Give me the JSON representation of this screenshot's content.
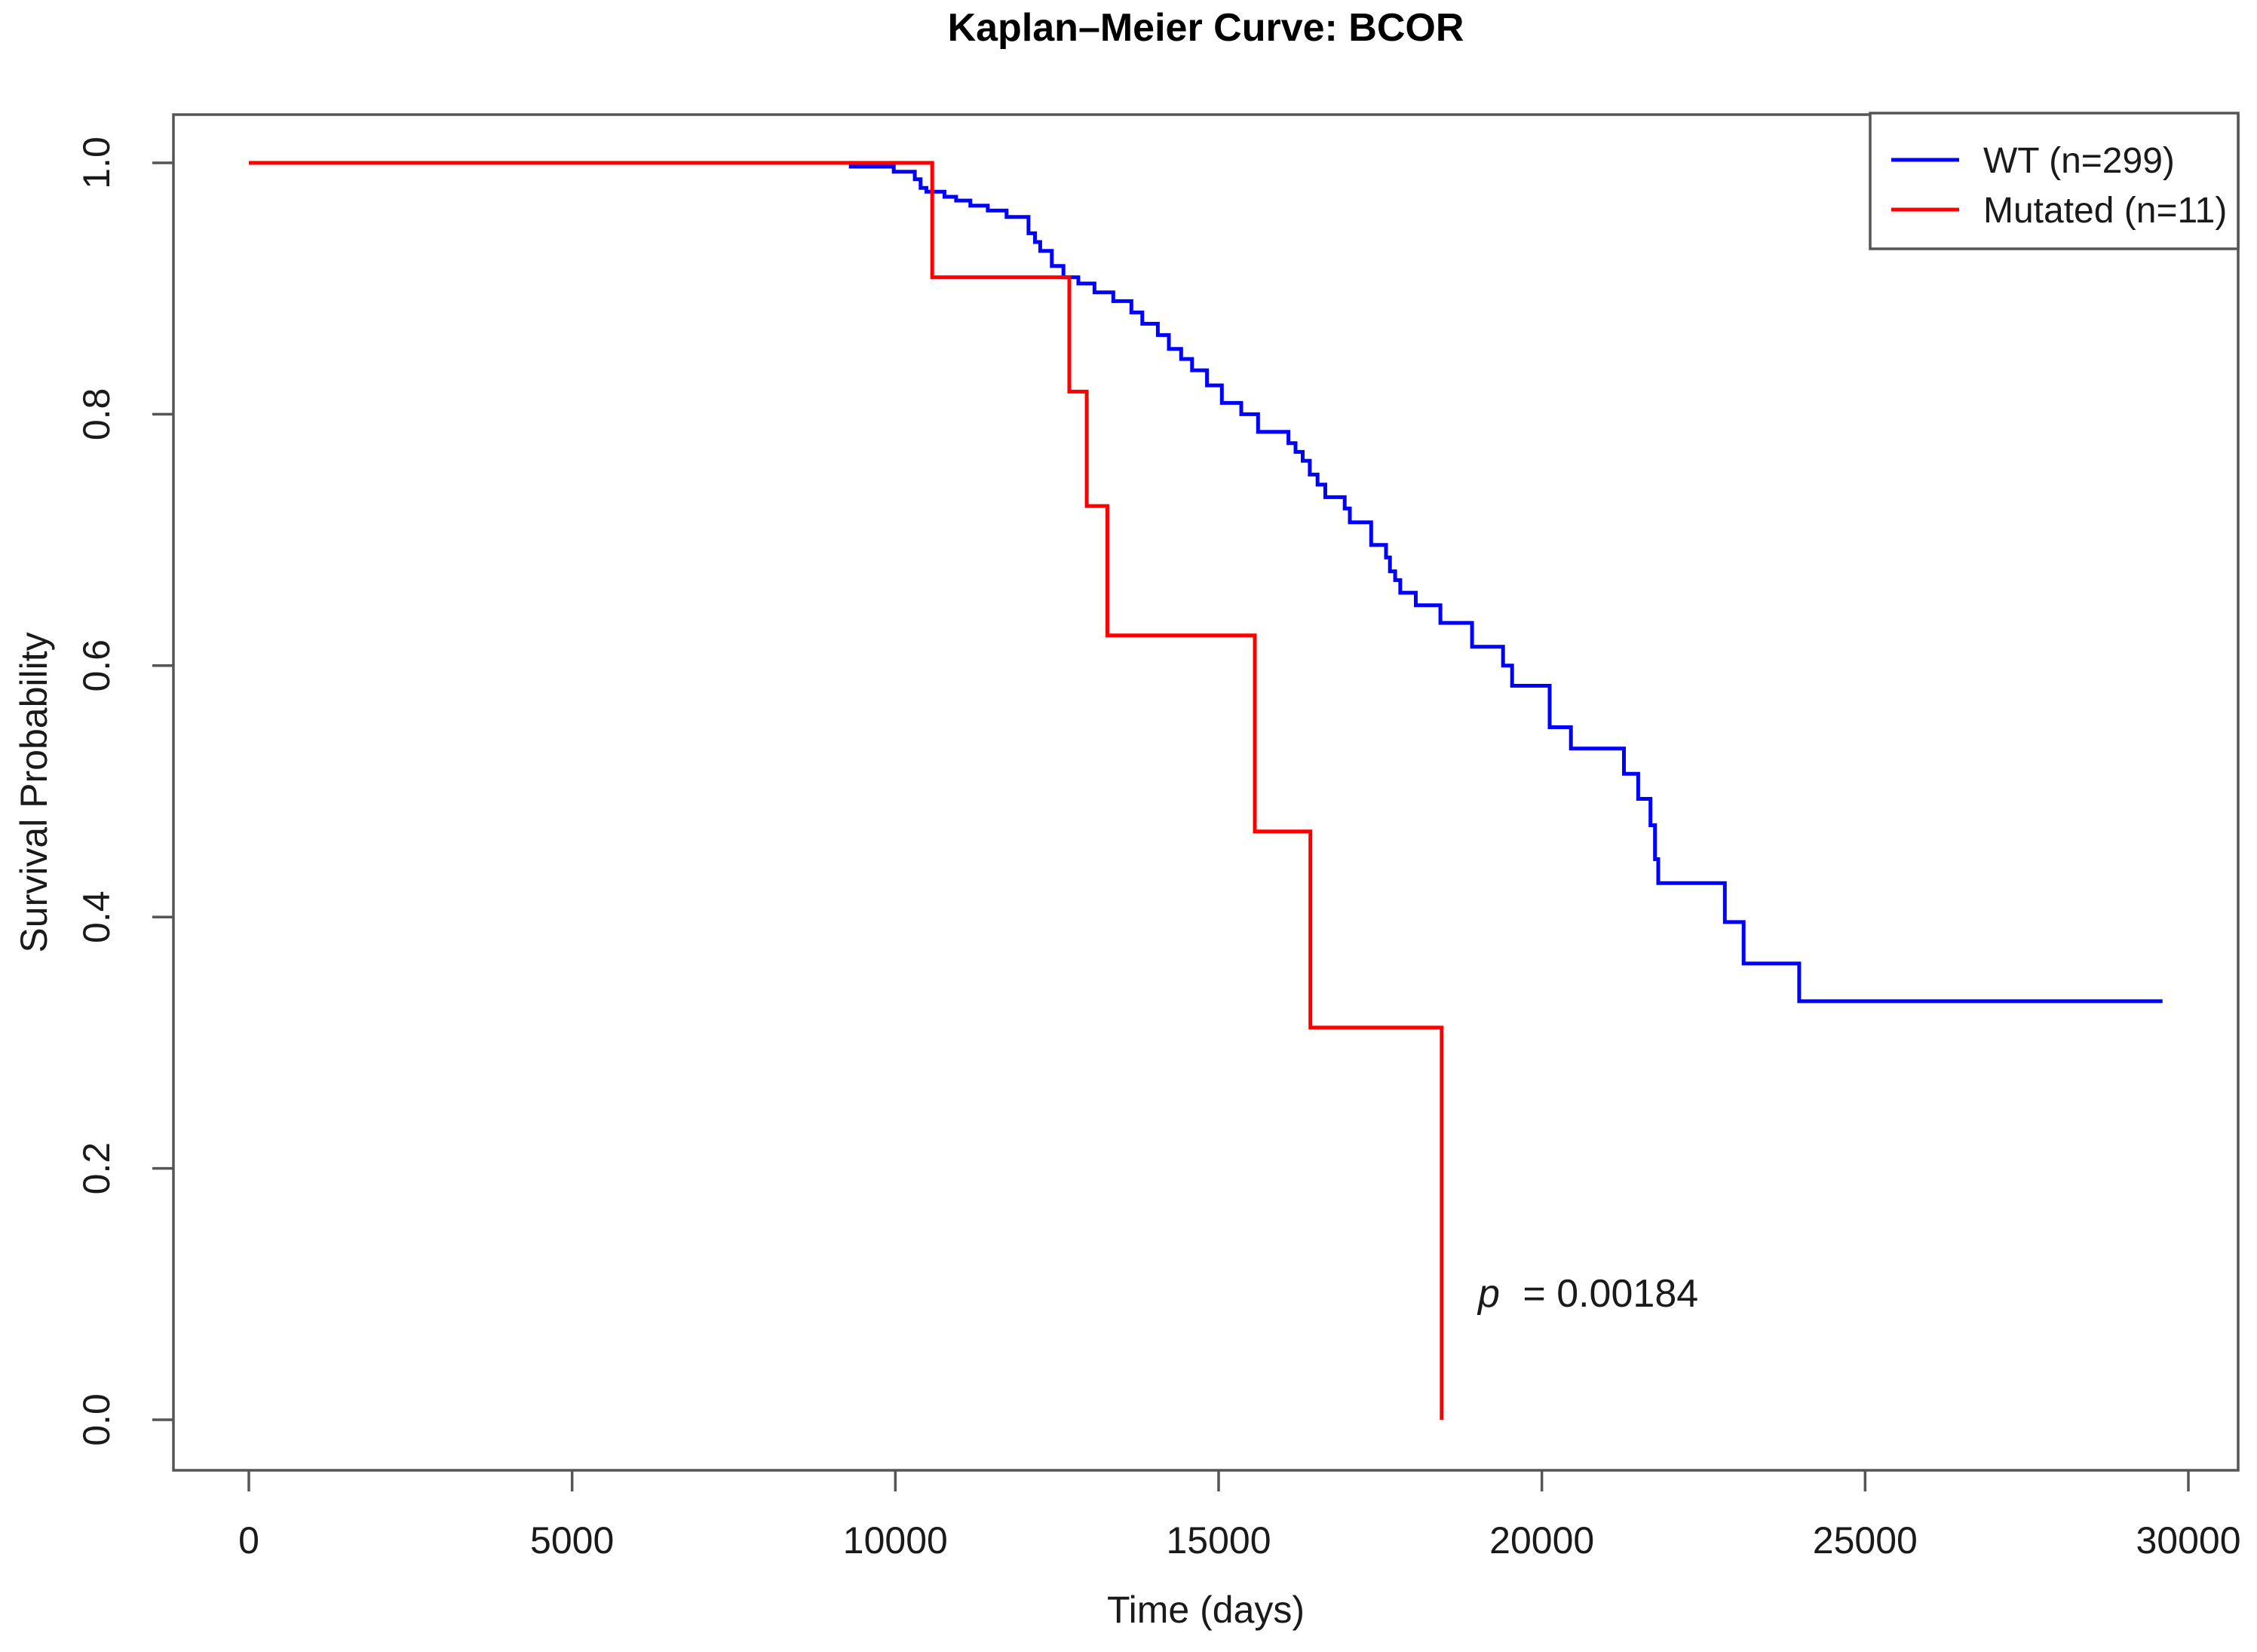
{
  "page": {
    "background": "#ffffff"
  },
  "chart_data": {
    "type": "line",
    "variant": "kaplan_meier_step_curve",
    "title": "Kaplan–Meier Curve: BCOR",
    "xlabel": "Time (days)",
    "ylabel": "Survival Probability",
    "xlim": [
      0,
      30000
    ],
    "ylim": [
      0.0,
      1.0
    ],
    "grid": false,
    "frame_color": "#555555",
    "x_ticks": {
      "values": [
        0,
        5000,
        10000,
        15000,
        20000,
        25000,
        30000
      ],
      "labels": [
        "0",
        "5000",
        "10000",
        "15000",
        "20000",
        "25000",
        "30000"
      ]
    },
    "y_ticks": {
      "values": [
        0.0,
        0.2,
        0.4,
        0.6,
        0.8,
        1.0
      ],
      "labels": [
        "0.0",
        "0.2",
        "0.4",
        "0.6",
        "0.8",
        "1.0"
      ]
    },
    "legend": {
      "position": "top-right",
      "entries": [
        {
          "label": "WT (n=299)",
          "color": "#0000ff"
        },
        {
          "label": "Mutated (n=11)",
          "color": "#ff0000"
        }
      ]
    },
    "annotation": {
      "symbol": "p",
      "rest": "= 0.00184",
      "text": "p = 0.00184",
      "x_days": 19000,
      "y_survival": 0.09
    },
    "series": [
      {
        "name": "WT (n=299)",
        "group": "WT",
        "n": 299,
        "color": "#0000ff",
        "points": [
          [
            0,
            1.0
          ],
          [
            9310,
            0.997
          ],
          [
            9975,
            0.993
          ],
          [
            10300,
            0.987
          ],
          [
            10390,
            0.98
          ],
          [
            10480,
            0.977
          ],
          [
            10760,
            0.973
          ],
          [
            10940,
            0.97
          ],
          [
            11160,
            0.966
          ],
          [
            11430,
            0.962
          ],
          [
            11720,
            0.957
          ],
          [
            12060,
            0.944
          ],
          [
            12160,
            0.937
          ],
          [
            12240,
            0.93
          ],
          [
            12420,
            0.918
          ],
          [
            12600,
            0.909
          ],
          [
            12830,
            0.904
          ],
          [
            13080,
            0.897
          ],
          [
            13370,
            0.89
          ],
          [
            13650,
            0.881
          ],
          [
            13820,
            0.872
          ],
          [
            14060,
            0.863
          ],
          [
            14230,
            0.852
          ],
          [
            14420,
            0.844
          ],
          [
            14590,
            0.835
          ],
          [
            14820,
            0.823
          ],
          [
            15050,
            0.809
          ],
          [
            15350,
            0.8
          ],
          [
            15610,
            0.786
          ],
          [
            16080,
            0.777
          ],
          [
            16190,
            0.77
          ],
          [
            16300,
            0.763
          ],
          [
            16410,
            0.752
          ],
          [
            16530,
            0.744
          ],
          [
            16650,
            0.734
          ],
          [
            16950,
            0.725
          ],
          [
            17030,
            0.714
          ],
          [
            17360,
            0.696
          ],
          [
            17590,
            0.686
          ],
          [
            17650,
            0.675
          ],
          [
            17730,
            0.668
          ],
          [
            17810,
            0.658
          ],
          [
            18050,
            0.648
          ],
          [
            18430,
            0.634
          ],
          [
            18920,
            0.615
          ],
          [
            19400,
            0.6
          ],
          [
            19540,
            0.584
          ],
          [
            20120,
            0.551
          ],
          [
            20450,
            0.534
          ],
          [
            21270,
            0.514
          ],
          [
            21490,
            0.494
          ],
          [
            21680,
            0.473
          ],
          [
            21750,
            0.446
          ],
          [
            21800,
            0.427
          ],
          [
            22830,
            0.396
          ],
          [
            23120,
            0.363
          ],
          [
            23980,
            0.333
          ],
          [
            29600,
            0.333
          ]
        ]
      },
      {
        "name": "Mutated (n=11)",
        "group": "Mutated",
        "n": 11,
        "color": "#ff0000",
        "points": [
          [
            0,
            1.0
          ],
          [
            10570,
            0.909
          ],
          [
            12690,
            0.818
          ],
          [
            12960,
            0.727
          ],
          [
            13280,
            0.624
          ],
          [
            15560,
            0.468
          ],
          [
            16420,
            0.312
          ],
          [
            18450,
            0.0
          ]
        ]
      }
    ]
  }
}
